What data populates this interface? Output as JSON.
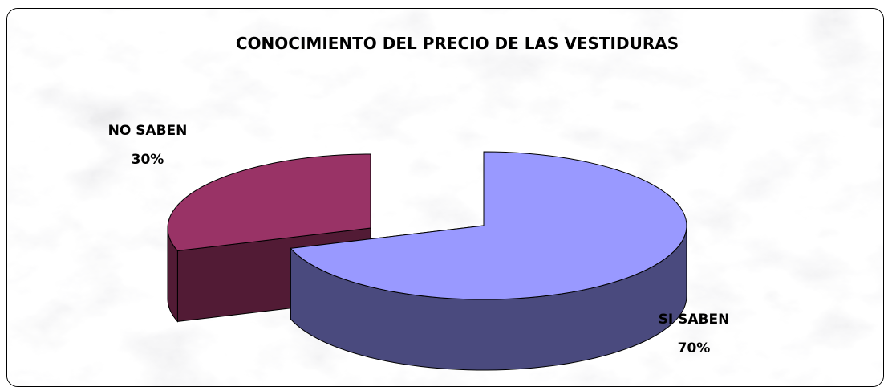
{
  "chart_data": {
    "type": "pie",
    "title": "CONOCIMIENTO DEL PRECIO DE LAS VESTIDURAS",
    "categories": [
      "SI SABEN",
      "NO SABEN"
    ],
    "values": [
      70,
      30
    ],
    "value_labels": [
      "70%",
      "30%"
    ],
    "colors": {
      "si_top": "#9999ff",
      "si_side": "#4a4a7e",
      "no_top": "#993366",
      "no_side": "#521b35"
    }
  }
}
